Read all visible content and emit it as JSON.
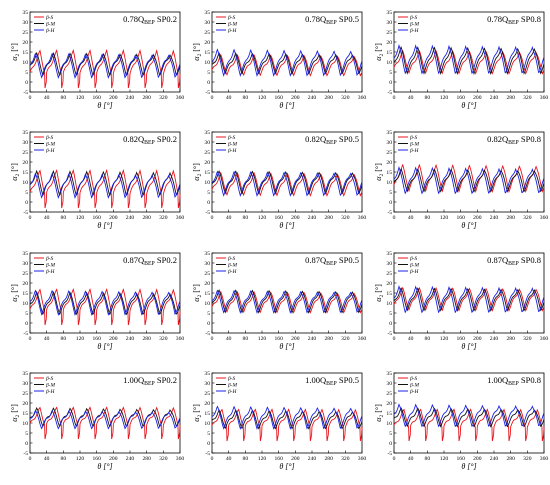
{
  "figure": {
    "x_label": "θ [°]",
    "y_label": "α",
    "y_label_sub": "2",
    "y_label_unit": " [°]",
    "legend_labels": [
      "β-S",
      "β-M",
      "β-H"
    ],
    "series_colors": [
      "#e8141c",
      "#111111",
      "#1a22e6"
    ]
  },
  "chart_data": [
    {
      "type": "line",
      "flow": "0.78Q",
      "flow_sub": "BEP",
      "span": "SP0.2",
      "xlim": [
        0,
        360
      ],
      "ylim": [
        -5,
        35
      ],
      "xticks": [
        0,
        40,
        80,
        120,
        160,
        200,
        240,
        280,
        320,
        360
      ],
      "yticks": [
        -5,
        0,
        5,
        10,
        15,
        20,
        25,
        30,
        35
      ],
      "series": [
        {
          "name": "β-S",
          "shape": "spike",
          "base": 4,
          "amp": 11,
          "phase": 0.1
        },
        {
          "name": "β-M",
          "shape": "saw",
          "base": 4,
          "amp": 10,
          "phase": 0.22
        },
        {
          "name": "β-H",
          "shape": "saw",
          "base": 3,
          "amp": 11,
          "phase": 0.3
        }
      ]
    },
    {
      "type": "line",
      "flow": "0.78Q",
      "flow_sub": "BEP",
      "span": "SP0.5",
      "xlim": [
        0,
        360
      ],
      "ylim": [
        -5,
        35
      ],
      "xticks": [
        0,
        40,
        80,
        120,
        160,
        200,
        240,
        280,
        320,
        360
      ],
      "yticks": [
        -5,
        0,
        5,
        10,
        15,
        20,
        25,
        30,
        35
      ],
      "series": [
        {
          "name": "β-S",
          "shape": "saw",
          "base": 4,
          "amp": 9,
          "phase": 0.1
        },
        {
          "name": "β-M",
          "shape": "saw",
          "base": 5,
          "amp": 9,
          "phase": 0.2
        },
        {
          "name": "β-H",
          "shape": "saw",
          "base": 4,
          "amp": 12,
          "phase": 0.3
        }
      ]
    },
    {
      "type": "line",
      "flow": "0.78Q",
      "flow_sub": "BEP",
      "span": "SP0.8",
      "xlim": [
        0,
        360
      ],
      "ylim": [
        -5,
        35
      ],
      "xticks": [
        0,
        40,
        80,
        120,
        160,
        200,
        240,
        280,
        320,
        360
      ],
      "yticks": [
        -5,
        0,
        5,
        10,
        15,
        20,
        25,
        30,
        35
      ],
      "series": [
        {
          "name": "β-S",
          "shape": "saw",
          "base": 5,
          "amp": 10,
          "phase": 0.1
        },
        {
          "name": "β-M",
          "shape": "saw",
          "base": 5,
          "amp": 12,
          "phase": 0.2
        },
        {
          "name": "β-H",
          "shape": "saw",
          "base": 5,
          "amp": 13,
          "phase": 0.32
        }
      ]
    },
    {
      "type": "line",
      "flow": "0.82Q",
      "flow_sub": "BEP",
      "span": "SP0.2",
      "xlim": [
        0,
        360
      ],
      "ylim": [
        -5,
        35
      ],
      "xticks": [
        0,
        40,
        80,
        120,
        160,
        200,
        240,
        280,
        320,
        360
      ],
      "yticks": [
        -5,
        0,
        5,
        10,
        15,
        20,
        25,
        30,
        35
      ],
      "series": [
        {
          "name": "β-S",
          "shape": "spike",
          "base": 4,
          "amp": 11,
          "phase": 0.1
        },
        {
          "name": "β-M",
          "shape": "saw",
          "base": 4,
          "amp": 11,
          "phase": 0.22
        },
        {
          "name": "β-H",
          "shape": "saw",
          "base": 3,
          "amp": 11,
          "phase": 0.3
        }
      ]
    },
    {
      "type": "line",
      "flow": "0.82Q",
      "flow_sub": "BEP",
      "span": "SP0.5",
      "xlim": [
        0,
        360
      ],
      "ylim": [
        -5,
        35
      ],
      "xticks": [
        0,
        40,
        80,
        120,
        160,
        200,
        240,
        280,
        320,
        360
      ],
      "yticks": [
        -5,
        0,
        5,
        10,
        15,
        20,
        25,
        30,
        35
      ],
      "series": [
        {
          "name": "β-S",
          "shape": "saw",
          "base": 4,
          "amp": 10,
          "phase": 0.1
        },
        {
          "name": "β-M",
          "shape": "saw",
          "base": 5,
          "amp": 10,
          "phase": 0.2
        },
        {
          "name": "β-H",
          "shape": "saw",
          "base": 4,
          "amp": 11,
          "phase": 0.3
        }
      ]
    },
    {
      "type": "line",
      "flow": "0.82Q",
      "flow_sub": "BEP",
      "span": "SP0.8",
      "xlim": [
        0,
        360
      ],
      "ylim": [
        -5,
        35
      ],
      "xticks": [
        0,
        40,
        80,
        120,
        160,
        200,
        240,
        280,
        320,
        360
      ],
      "yticks": [
        -5,
        0,
        5,
        10,
        15,
        20,
        25,
        30,
        35
      ],
      "series": [
        {
          "name": "β-S",
          "shape": "saw",
          "base": 6,
          "amp": 12,
          "phase": 0.1
        },
        {
          "name": "β-M",
          "shape": "saw",
          "base": 6,
          "amp": 10,
          "phase": 0.2
        },
        {
          "name": "β-H",
          "shape": "saw",
          "base": 5,
          "amp": 12,
          "phase": 0.32
        }
      ]
    },
    {
      "type": "line",
      "flow": "0.87Q",
      "flow_sub": "BEP",
      "span": "SP0.2",
      "xlim": [
        0,
        360
      ],
      "ylim": [
        -5,
        35
      ],
      "xticks": [
        0,
        40,
        80,
        120,
        160,
        200,
        240,
        280,
        320,
        360
      ],
      "yticks": [
        -5,
        0,
        5,
        10,
        15,
        20,
        25,
        30,
        35
      ],
      "series": [
        {
          "name": "β-S",
          "shape": "spike",
          "base": 6,
          "amp": 10,
          "phase": 0.1
        },
        {
          "name": "β-M",
          "shape": "saw",
          "base": 5,
          "amp": 10,
          "phase": 0.22
        },
        {
          "name": "β-H",
          "shape": "saw",
          "base": 5,
          "amp": 11,
          "phase": 0.3
        }
      ]
    },
    {
      "type": "line",
      "flow": "0.87Q",
      "flow_sub": "BEP",
      "span": "SP0.5",
      "xlim": [
        0,
        360
      ],
      "ylim": [
        -5,
        35
      ],
      "xticks": [
        0,
        40,
        80,
        120,
        160,
        200,
        240,
        280,
        320,
        360
      ],
      "yticks": [
        -5,
        0,
        5,
        10,
        15,
        20,
        25,
        30,
        35
      ],
      "series": [
        {
          "name": "β-S",
          "shape": "saw",
          "base": 6,
          "amp": 9,
          "phase": 0.1
        },
        {
          "name": "β-M",
          "shape": "saw",
          "base": 6,
          "amp": 10,
          "phase": 0.2
        },
        {
          "name": "β-H",
          "shape": "saw",
          "base": 6,
          "amp": 10,
          "phase": 0.3
        }
      ]
    },
    {
      "type": "line",
      "flow": "0.87Q",
      "flow_sub": "BEP",
      "span": "SP0.8",
      "xlim": [
        0,
        360
      ],
      "ylim": [
        -5,
        35
      ],
      "xticks": [
        0,
        40,
        80,
        120,
        160,
        200,
        240,
        280,
        320,
        360
      ],
      "yticks": [
        -5,
        0,
        5,
        10,
        15,
        20,
        25,
        30,
        35
      ],
      "series": [
        {
          "name": "β-S",
          "shape": "saw",
          "base": 7,
          "amp": 10,
          "phase": 0.1
        },
        {
          "name": "β-M",
          "shape": "saw",
          "base": 7,
          "amp": 10,
          "phase": 0.2
        },
        {
          "name": "β-H",
          "shape": "saw",
          "base": 6,
          "amp": 12,
          "phase": 0.32
        }
      ]
    },
    {
      "type": "line",
      "flow": "1.00Q",
      "flow_sub": "BEP",
      "span": "SP0.2",
      "xlim": [
        0,
        360
      ],
      "ylim": [
        -5,
        35
      ],
      "xticks": [
        0,
        40,
        80,
        120,
        160,
        200,
        240,
        280,
        320,
        360
      ],
      "yticks": [
        -5,
        0,
        5,
        10,
        15,
        20,
        25,
        30,
        35
      ],
      "series": [
        {
          "name": "β-S",
          "shape": "spike",
          "base": 9,
          "amp": 8,
          "phase": 0.1
        },
        {
          "name": "β-M",
          "shape": "saw",
          "base": 9,
          "amp": 8,
          "phase": 0.22
        },
        {
          "name": "β-H",
          "shape": "saw",
          "base": 8,
          "amp": 8,
          "phase": 0.3
        }
      ]
    },
    {
      "type": "line",
      "flow": "1.00Q",
      "flow_sub": "BEP",
      "span": "SP0.5",
      "xlim": [
        0,
        360
      ],
      "ylim": [
        -5,
        35
      ],
      "xticks": [
        0,
        40,
        80,
        120,
        160,
        200,
        240,
        280,
        320,
        360
      ],
      "yticks": [
        -5,
        0,
        5,
        10,
        15,
        20,
        25,
        30,
        35
      ],
      "series": [
        {
          "name": "β-S",
          "shape": "spike",
          "base": 8,
          "amp": 8,
          "phase": 0.1
        },
        {
          "name": "β-M",
          "shape": "saw",
          "base": 8,
          "amp": 8,
          "phase": 0.2
        },
        {
          "name": "β-H",
          "shape": "saw",
          "base": 8,
          "amp": 10,
          "phase": 0.3
        }
      ]
    },
    {
      "type": "line",
      "flow": "1.00Q",
      "flow_sub": "BEP",
      "span": "SP0.8",
      "xlim": [
        0,
        360
      ],
      "ylim": [
        -5,
        35
      ],
      "xticks": [
        0,
        40,
        80,
        120,
        160,
        200,
        240,
        280,
        320,
        360
      ],
      "yticks": [
        -5,
        0,
        5,
        10,
        15,
        20,
        25,
        30,
        35
      ],
      "series": [
        {
          "name": "β-S",
          "shape": "spike",
          "base": 8,
          "amp": 8,
          "phase": 0.1
        },
        {
          "name": "β-M",
          "shape": "saw",
          "base": 9,
          "amp": 8,
          "phase": 0.2
        },
        {
          "name": "β-H",
          "shape": "saw",
          "base": 9,
          "amp": 10,
          "phase": 0.32
        }
      ]
    }
  ]
}
